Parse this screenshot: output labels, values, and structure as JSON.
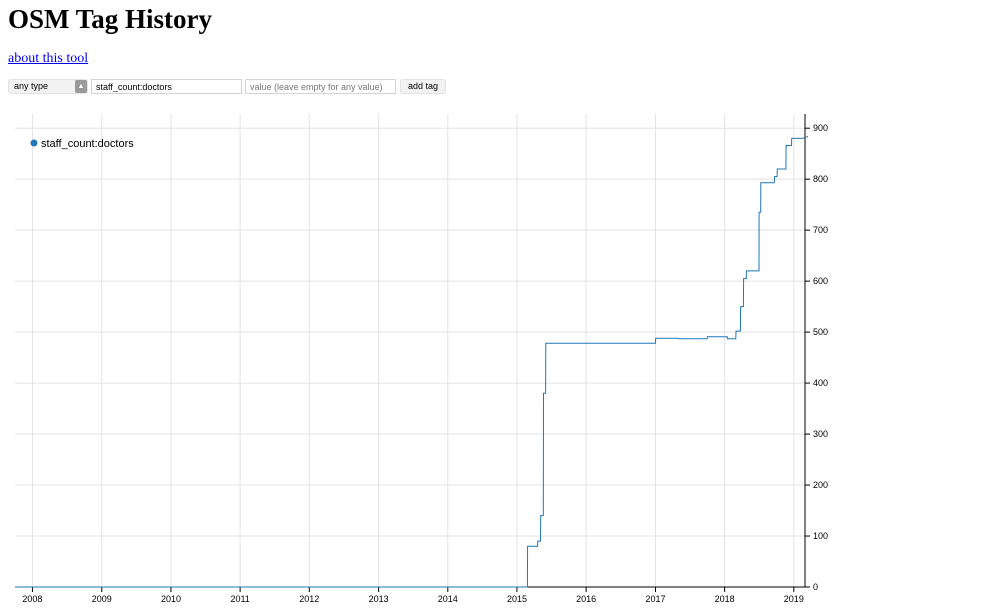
{
  "page": {
    "title": "OSM Tag History",
    "about_link": "about this tool"
  },
  "controls": {
    "type_select": "any type",
    "key_value": "staff_count:doctors",
    "value_placeholder": "value (leave empty for any value)",
    "add_button": "add tag"
  },
  "chart_data": {
    "type": "line",
    "step": true,
    "title": "",
    "xlabel": "",
    "ylabel": "",
    "x_ticks": [
      "2008",
      "2009",
      "2010",
      "2011",
      "2012",
      "2013",
      "2014",
      "2015",
      "2016",
      "2017",
      "2018",
      "2019"
    ],
    "y_ticks": [
      0,
      100,
      200,
      300,
      400,
      500,
      600,
      700,
      800,
      900
    ],
    "xlim": [
      "2007-10-01",
      "2019-03-01"
    ],
    "ylim": [
      0,
      920
    ],
    "grid": true,
    "legend_position": "top-left",
    "series": [
      {
        "name": "staff_count:doctors",
        "color": "#1f77b4",
        "points": [
          [
            "2007-10-01",
            0
          ],
          [
            "2015-02-25",
            0
          ],
          [
            "2015-02-26",
            80
          ],
          [
            "2015-04-20",
            80
          ],
          [
            "2015-04-21",
            90
          ],
          [
            "2015-05-05",
            90
          ],
          [
            "2015-05-06",
            140
          ],
          [
            "2015-05-20",
            140
          ],
          [
            "2015-05-21",
            380
          ],
          [
            "2015-06-01",
            380
          ],
          [
            "2015-06-02",
            478
          ],
          [
            "2017-01-01",
            478
          ],
          [
            "2017-01-02",
            488
          ],
          [
            "2017-05-01",
            488
          ],
          [
            "2017-05-02",
            487
          ],
          [
            "2017-10-01",
            487
          ],
          [
            "2017-10-02",
            491
          ],
          [
            "2018-01-15",
            491
          ],
          [
            "2018-01-16",
            487
          ],
          [
            "2018-03-01",
            487
          ],
          [
            "2018-03-02",
            502
          ],
          [
            "2018-03-25",
            502
          ],
          [
            "2018-03-26",
            550
          ],
          [
            "2018-04-10",
            550
          ],
          [
            "2018-04-11",
            605
          ],
          [
            "2018-04-25",
            605
          ],
          [
            "2018-04-26",
            620
          ],
          [
            "2018-07-01",
            620
          ],
          [
            "2018-07-02",
            735
          ],
          [
            "2018-07-10",
            735
          ],
          [
            "2018-07-11",
            793
          ],
          [
            "2018-09-20",
            793
          ],
          [
            "2018-09-21",
            805
          ],
          [
            "2018-10-05",
            805
          ],
          [
            "2018-10-06",
            820
          ],
          [
            "2018-11-20",
            820
          ],
          [
            "2018-11-21",
            866
          ],
          [
            "2018-12-20",
            866
          ],
          [
            "2018-12-21",
            880
          ],
          [
            "2019-02-15",
            880
          ]
        ]
      }
    ]
  }
}
